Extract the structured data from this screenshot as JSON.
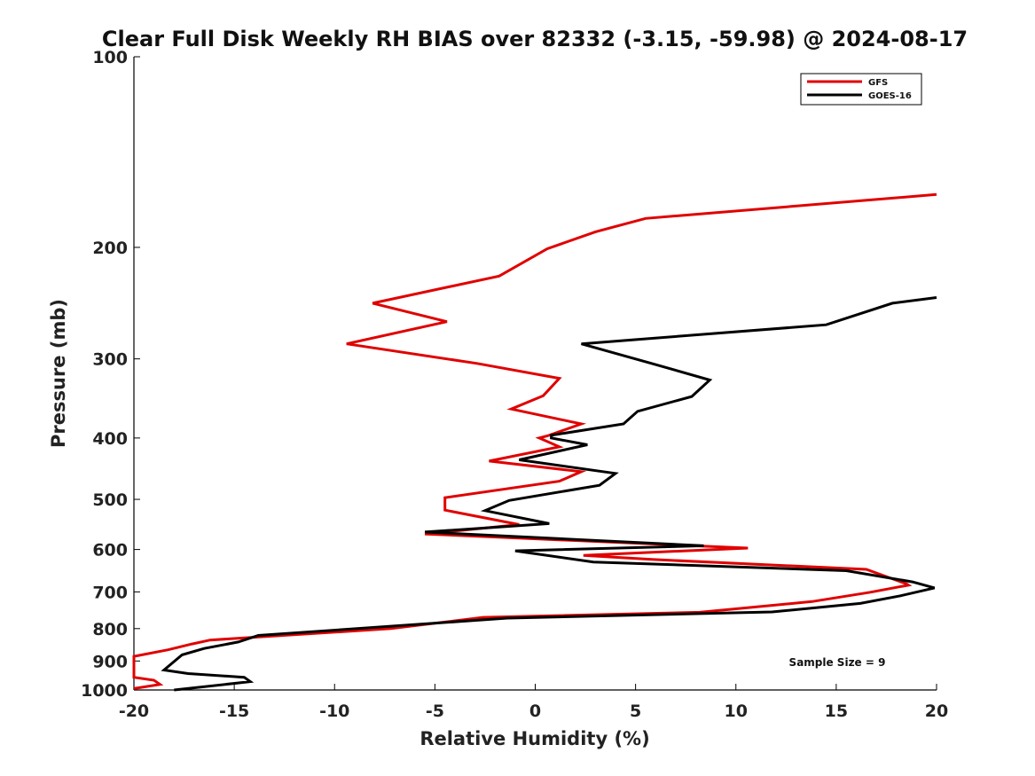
{
  "chart_data": {
    "type": "line",
    "title": "Clear Full Disk Weekly RH BIAS over 82332 (-3.15, -59.98) @ 2024-08-17",
    "xlabel": "Relative Humidity (%)",
    "ylabel": "Pressure (mb)",
    "xlim": [
      -20,
      20
    ],
    "ylim": [
      1000,
      100
    ],
    "yscale": "log",
    "xticks": [
      -20,
      -15,
      -10,
      -5,
      0,
      5,
      10,
      15,
      20
    ],
    "xtick_labels": [
      "-20",
      "-15",
      "-10",
      "-5",
      "0",
      "5",
      "10",
      "15",
      "20"
    ],
    "yticks": [
      100,
      200,
      300,
      400,
      500,
      600,
      700,
      800,
      900,
      1000
    ],
    "ytick_labels": [
      "100",
      "200",
      "300",
      "400",
      "500",
      "600",
      "700",
      "800",
      "900",
      "1000"
    ],
    "grid": false,
    "legend_position": "top-right",
    "annotation": "Sample Size = 9",
    "series": [
      {
        "name": "GFS",
        "color": "#e00000",
        "points": [
          [
            20,
            165
          ],
          [
            5.5,
            180
          ],
          [
            3.0,
            189
          ],
          [
            0.6,
            201
          ],
          [
            -1.8,
            222
          ],
          [
            -8.1,
            245
          ],
          [
            -4.4,
            262
          ],
          [
            -9.4,
            284
          ],
          [
            -2.9,
            305
          ],
          [
            1.2,
            322
          ],
          [
            0.4,
            343
          ],
          [
            -1.2,
            360
          ],
          [
            2.3,
            380
          ],
          [
            0.6,
            397
          ],
          [
            0.2,
            400
          ],
          [
            1.2,
            413
          ],
          [
            -2.3,
            435
          ],
          [
            2.3,
            452
          ],
          [
            1.2,
            468
          ],
          [
            -4.5,
            497
          ],
          [
            -4.5,
            520
          ],
          [
            -0.8,
            548
          ],
          [
            -5.5,
            567
          ],
          [
            10.6,
            597
          ],
          [
            2.4,
            613
          ],
          [
            5.8,
            622
          ],
          [
            16.5,
            645
          ],
          [
            18.5,
            680
          ],
          [
            18.6,
            683
          ],
          [
            16.7,
            701
          ],
          [
            13.8,
            725
          ],
          [
            8.2,
            754
          ],
          [
            -2.6,
            768
          ],
          [
            -7.2,
            800
          ],
          [
            -16.2,
            834
          ],
          [
            -17.1,
            846
          ],
          [
            -18.3,
            864
          ],
          [
            -20,
            885
          ],
          [
            -20,
            955
          ],
          [
            -19,
            965
          ],
          [
            -18.7,
            980
          ],
          [
            -20,
            995
          ]
        ]
      },
      {
        "name": "GOES-16",
        "color": "#000000",
        "points": [
          [
            20,
            240
          ],
          [
            17.8,
            245
          ],
          [
            14.5,
            265
          ],
          [
            2.3,
            284
          ],
          [
            5.8,
            305
          ],
          [
            8.7,
            324
          ],
          [
            7.8,
            344
          ],
          [
            5.1,
            363
          ],
          [
            4.4,
            380
          ],
          [
            0.8,
            396
          ],
          [
            0.8,
            400
          ],
          [
            2.6,
            410
          ],
          [
            -0.8,
            433
          ],
          [
            4.0,
            455
          ],
          [
            3.2,
            475
          ],
          [
            -1.3,
            502
          ],
          [
            -2.5,
            521
          ],
          [
            0.7,
            546
          ],
          [
            -5.5,
            563
          ],
          [
            8.4,
            592
          ],
          [
            -1.0,
            603
          ],
          [
            2.9,
            628
          ],
          [
            15.5,
            648
          ],
          [
            18.8,
            675
          ],
          [
            19.9,
            690
          ],
          [
            18.2,
            710
          ],
          [
            16.2,
            730
          ],
          [
            11.8,
            753
          ],
          [
            -1.4,
            770
          ],
          [
            -13.8,
            820
          ],
          [
            -14.8,
            840
          ],
          [
            -16.5,
            860
          ],
          [
            -17.6,
            880
          ],
          [
            -18.5,
            930
          ],
          [
            -17.3,
            942
          ],
          [
            -14.5,
            955
          ],
          [
            -14.2,
            970
          ],
          [
            -18.0,
            1000
          ]
        ]
      }
    ]
  }
}
